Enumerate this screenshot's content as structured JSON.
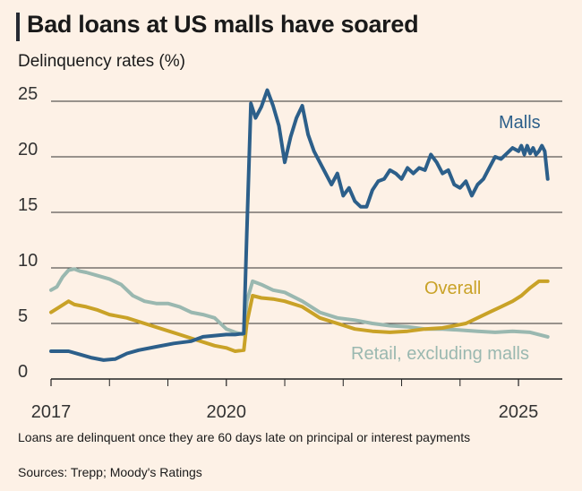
{
  "chart_data": {
    "type": "line",
    "title": "Bad loans at US malls have soared",
    "ylabel": "Delinquency rates (%)",
    "xlabel": "",
    "ylim": [
      0,
      25
    ],
    "xlim": [
      2017,
      2025.75
    ],
    "yticks": [
      0,
      5,
      10,
      15,
      20,
      25
    ],
    "ytick_labels": [
      "0",
      "5",
      "10",
      "15",
      "20",
      "25"
    ],
    "xticks_major": [
      2017,
      2020,
      2025
    ],
    "xtick_labels": [
      "2017",
      "2020",
      "2025"
    ],
    "xticks_minor": [
      2018,
      2019,
      2021,
      2022,
      2023,
      2024
    ],
    "grid": true,
    "series": [
      {
        "name": "Malls",
        "color": "#2c5f8a",
        "points": [
          [
            2017.0,
            2.5
          ],
          [
            2017.3,
            2.5
          ],
          [
            2017.5,
            2.2
          ],
          [
            2017.7,
            1.9
          ],
          [
            2017.9,
            1.7
          ],
          [
            2018.1,
            1.8
          ],
          [
            2018.3,
            2.3
          ],
          [
            2018.5,
            2.6
          ],
          [
            2018.8,
            2.9
          ],
          [
            2019.1,
            3.2
          ],
          [
            2019.4,
            3.4
          ],
          [
            2019.6,
            3.8
          ],
          [
            2019.8,
            3.9
          ],
          [
            2020.0,
            4.0
          ],
          [
            2020.15,
            4.0
          ],
          [
            2020.3,
            4.1
          ],
          [
            2020.35,
            13
          ],
          [
            2020.42,
            24.8
          ],
          [
            2020.5,
            23.5
          ],
          [
            2020.6,
            24.5
          ],
          [
            2020.7,
            26.0
          ],
          [
            2020.8,
            24.6
          ],
          [
            2020.9,
            22.8
          ],
          [
            2021.0,
            19.5
          ],
          [
            2021.1,
            21.8
          ],
          [
            2021.2,
            23.5
          ],
          [
            2021.3,
            24.6
          ],
          [
            2021.4,
            22.0
          ],
          [
            2021.5,
            20.5
          ],
          [
            2021.6,
            19.5
          ],
          [
            2021.7,
            18.5
          ],
          [
            2021.8,
            17.5
          ],
          [
            2021.9,
            18.5
          ],
          [
            2022.0,
            16.5
          ],
          [
            2022.1,
            17.2
          ],
          [
            2022.2,
            16.0
          ],
          [
            2022.3,
            15.5
          ],
          [
            2022.4,
            15.5
          ],
          [
            2022.5,
            17.0
          ],
          [
            2022.6,
            17.8
          ],
          [
            2022.7,
            18.0
          ],
          [
            2022.8,
            18.8
          ],
          [
            2022.9,
            18.5
          ],
          [
            2023.0,
            18.0
          ],
          [
            2023.1,
            19.0
          ],
          [
            2023.2,
            18.5
          ],
          [
            2023.3,
            19.0
          ],
          [
            2023.4,
            18.8
          ],
          [
            2023.5,
            20.2
          ],
          [
            2023.6,
            19.5
          ],
          [
            2023.7,
            18.5
          ],
          [
            2023.8,
            18.8
          ],
          [
            2023.9,
            17.5
          ],
          [
            2024.0,
            17.2
          ],
          [
            2024.1,
            17.8
          ],
          [
            2024.2,
            16.5
          ],
          [
            2024.3,
            17.5
          ],
          [
            2024.4,
            18.0
          ],
          [
            2024.5,
            19.0
          ],
          [
            2024.6,
            20.0
          ],
          [
            2024.7,
            19.8
          ],
          [
            2024.8,
            20.3
          ],
          [
            2024.9,
            20.8
          ],
          [
            2025.0,
            20.5
          ],
          [
            2025.05,
            21.0
          ],
          [
            2025.1,
            20.2
          ],
          [
            2025.15,
            21.0
          ],
          [
            2025.2,
            20.3
          ],
          [
            2025.25,
            20.8
          ],
          [
            2025.3,
            20.2
          ],
          [
            2025.35,
            20.5
          ],
          [
            2025.4,
            21.0
          ],
          [
            2025.45,
            20.5
          ],
          [
            2025.5,
            18.0
          ]
        ]
      },
      {
        "name": "Overall",
        "color": "#c9a227",
        "points": [
          [
            2017.0,
            6.0
          ],
          [
            2017.15,
            6.5
          ],
          [
            2017.3,
            7.0
          ],
          [
            2017.4,
            6.7
          ],
          [
            2017.6,
            6.5
          ],
          [
            2017.8,
            6.2
          ],
          [
            2018.0,
            5.8
          ],
          [
            2018.3,
            5.5
          ],
          [
            2018.6,
            5.0
          ],
          [
            2018.9,
            4.5
          ],
          [
            2019.2,
            4.0
          ],
          [
            2019.5,
            3.5
          ],
          [
            2019.8,
            3.0
          ],
          [
            2020.0,
            2.8
          ],
          [
            2020.15,
            2.5
          ],
          [
            2020.3,
            2.6
          ],
          [
            2020.35,
            5.0
          ],
          [
            2020.45,
            7.5
          ],
          [
            2020.6,
            7.3
          ],
          [
            2020.8,
            7.2
          ],
          [
            2021.0,
            7.0
          ],
          [
            2021.3,
            6.5
          ],
          [
            2021.6,
            5.5
          ],
          [
            2021.9,
            5.0
          ],
          [
            2022.2,
            4.5
          ],
          [
            2022.5,
            4.3
          ],
          [
            2022.8,
            4.2
          ],
          [
            2023.1,
            4.3
          ],
          [
            2023.4,
            4.5
          ],
          [
            2023.7,
            4.6
          ],
          [
            2023.9,
            4.8
          ],
          [
            2024.1,
            5.0
          ],
          [
            2024.3,
            5.5
          ],
          [
            2024.5,
            6.0
          ],
          [
            2024.7,
            6.5
          ],
          [
            2024.9,
            7.0
          ],
          [
            2025.05,
            7.5
          ],
          [
            2025.2,
            8.2
          ],
          [
            2025.35,
            8.8
          ],
          [
            2025.5,
            8.8
          ]
        ]
      },
      {
        "name": "Retail, excluding malls",
        "color": "#9ab8b0",
        "points": [
          [
            2017.0,
            8.0
          ],
          [
            2017.1,
            8.3
          ],
          [
            2017.2,
            9.2
          ],
          [
            2017.3,
            9.8
          ],
          [
            2017.4,
            9.9
          ],
          [
            2017.5,
            9.7
          ],
          [
            2017.6,
            9.6
          ],
          [
            2017.8,
            9.3
          ],
          [
            2018.0,
            9.0
          ],
          [
            2018.2,
            8.5
          ],
          [
            2018.4,
            7.5
          ],
          [
            2018.6,
            7.0
          ],
          [
            2018.8,
            6.8
          ],
          [
            2019.0,
            6.8
          ],
          [
            2019.2,
            6.5
          ],
          [
            2019.4,
            6.0
          ],
          [
            2019.6,
            5.8
          ],
          [
            2019.8,
            5.5
          ],
          [
            2020.0,
            4.5
          ],
          [
            2020.15,
            4.2
          ],
          [
            2020.3,
            4.0
          ],
          [
            2020.35,
            7.0
          ],
          [
            2020.45,
            8.8
          ],
          [
            2020.6,
            8.5
          ],
          [
            2020.8,
            8.0
          ],
          [
            2021.0,
            7.8
          ],
          [
            2021.3,
            7.0
          ],
          [
            2021.6,
            6.0
          ],
          [
            2021.9,
            5.5
          ],
          [
            2022.2,
            5.3
          ],
          [
            2022.5,
            5.0
          ],
          [
            2022.8,
            4.8
          ],
          [
            2023.1,
            4.7
          ],
          [
            2023.4,
            4.5
          ],
          [
            2023.7,
            4.5
          ],
          [
            2024.0,
            4.4
          ],
          [
            2024.3,
            4.3
          ],
          [
            2024.6,
            4.2
          ],
          [
            2024.9,
            4.3
          ],
          [
            2025.2,
            4.2
          ],
          [
            2025.5,
            3.8
          ]
        ]
      }
    ],
    "annotations": [
      {
        "series": "Malls",
        "text": "Malls"
      },
      {
        "series": "Overall",
        "text": "Overall"
      },
      {
        "series": "Retail, excluding malls",
        "text": "Retail, excluding malls"
      }
    ]
  },
  "footnote": "Loans are delinquent once they are 60 days late on principal or interest payments",
  "source": "Sources: Trepp; Moody's Ratings"
}
